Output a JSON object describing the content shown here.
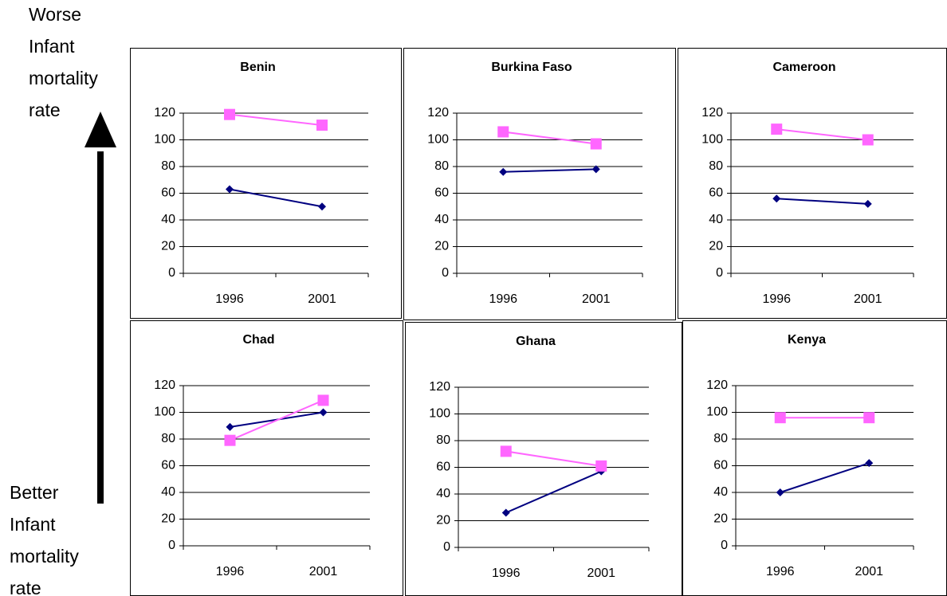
{
  "annotations": {
    "worse": [
      "Worse",
      "Infant",
      "mortality",
      "rate"
    ],
    "better": [
      "Better",
      "Infant",
      "mortality",
      "rate"
    ]
  },
  "chart_data": [
    {
      "type": "line",
      "title": "Benin",
      "categories": [
        "1996",
        "2001"
      ],
      "ylim": [
        0,
        120
      ],
      "yticks": [
        0,
        20,
        40,
        60,
        80,
        100,
        120
      ],
      "grid": true,
      "series": [
        {
          "color": "#000080",
          "marker": "diamond",
          "values": [
            63,
            50
          ]
        },
        {
          "color": "#ff66ff",
          "marker": "square",
          "values": [
            119,
            111
          ]
        }
      ]
    },
    {
      "type": "line",
      "title": "Burkina Faso",
      "categories": [
        "1996",
        "2001"
      ],
      "ylim": [
        0,
        120
      ],
      "yticks": [
        0,
        20,
        40,
        60,
        80,
        100,
        120
      ],
      "grid": true,
      "series": [
        {
          "color": "#000080",
          "marker": "diamond",
          "values": [
            76,
            78
          ]
        },
        {
          "color": "#ff66ff",
          "marker": "square",
          "values": [
            106,
            97
          ]
        }
      ]
    },
    {
      "type": "line",
      "title": "Cameroon",
      "categories": [
        "1996",
        "2001"
      ],
      "ylim": [
        0,
        120
      ],
      "yticks": [
        0,
        20,
        40,
        60,
        80,
        100,
        120
      ],
      "grid": true,
      "series": [
        {
          "color": "#000080",
          "marker": "diamond",
          "values": [
            56,
            52
          ]
        },
        {
          "color": "#ff66ff",
          "marker": "square",
          "values": [
            108,
            100
          ]
        }
      ]
    },
    {
      "type": "line",
      "title": "Chad",
      "categories": [
        "1996",
        "2001"
      ],
      "ylim": [
        0,
        120
      ],
      "yticks": [
        0,
        20,
        40,
        60,
        80,
        100,
        120
      ],
      "grid": true,
      "series": [
        {
          "color": "#000080",
          "marker": "diamond",
          "values": [
            89,
            100
          ]
        },
        {
          "color": "#ff66ff",
          "marker": "square",
          "values": [
            79,
            109
          ]
        }
      ]
    },
    {
      "type": "line",
      "title": "Ghana",
      "categories": [
        "1996",
        "2001"
      ],
      "ylim": [
        0,
        120
      ],
      "yticks": [
        0,
        20,
        40,
        60,
        80,
        100,
        120
      ],
      "grid": true,
      "series": [
        {
          "color": "#000080",
          "marker": "diamond",
          "values": [
            26,
            57
          ]
        },
        {
          "color": "#ff66ff",
          "marker": "square",
          "values": [
            72,
            61
          ]
        }
      ]
    },
    {
      "type": "line",
      "title": "Kenya",
      "categories": [
        "1996",
        "2001"
      ],
      "ylim": [
        0,
        120
      ],
      "yticks": [
        0,
        20,
        40,
        60,
        80,
        100,
        120
      ],
      "grid": true,
      "series": [
        {
          "color": "#000080",
          "marker": "diamond",
          "values": [
            40,
            62
          ]
        },
        {
          "color": "#ff66ff",
          "marker": "square",
          "values": [
            96,
            96
          ]
        }
      ]
    }
  ]
}
